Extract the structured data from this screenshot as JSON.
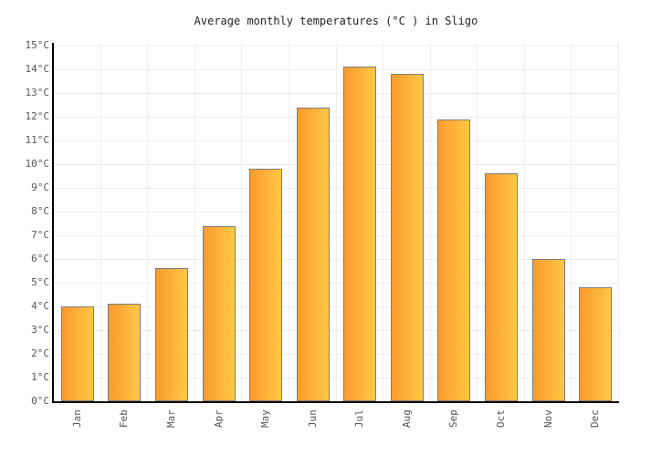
{
  "chart": {
    "title": "Average monthly temperatures (°C ) in Sligo"
  },
  "chart_data": {
    "type": "bar",
    "title": "Average monthly temperatures (°C ) in Sligo",
    "categories": [
      "Jan",
      "Feb",
      "Mar",
      "Apr",
      "May",
      "Jun",
      "Jul",
      "Aug",
      "Sep",
      "Oct",
      "Nov",
      "Dec"
    ],
    "values": [
      4.0,
      4.1,
      5.6,
      7.4,
      9.8,
      12.4,
      14.1,
      13.8,
      11.9,
      9.6,
      6.0,
      4.8
    ],
    "xlabel": "",
    "ylabel": "",
    "ylim": [
      0,
      15
    ],
    "ytick_step": 1,
    "ytick_suffix": "°C",
    "grid": true,
    "legend_position": "none",
    "colors": {
      "bar_gradient_left": "#FA9A30",
      "bar_gradient_right": "#FFC845",
      "bar_border": "#7B7B7B",
      "gridline": "#EEEEEE",
      "axis": "#000000",
      "tick_label": "#555555",
      "title_text": "#222222",
      "background": "#FFFFFF"
    }
  }
}
